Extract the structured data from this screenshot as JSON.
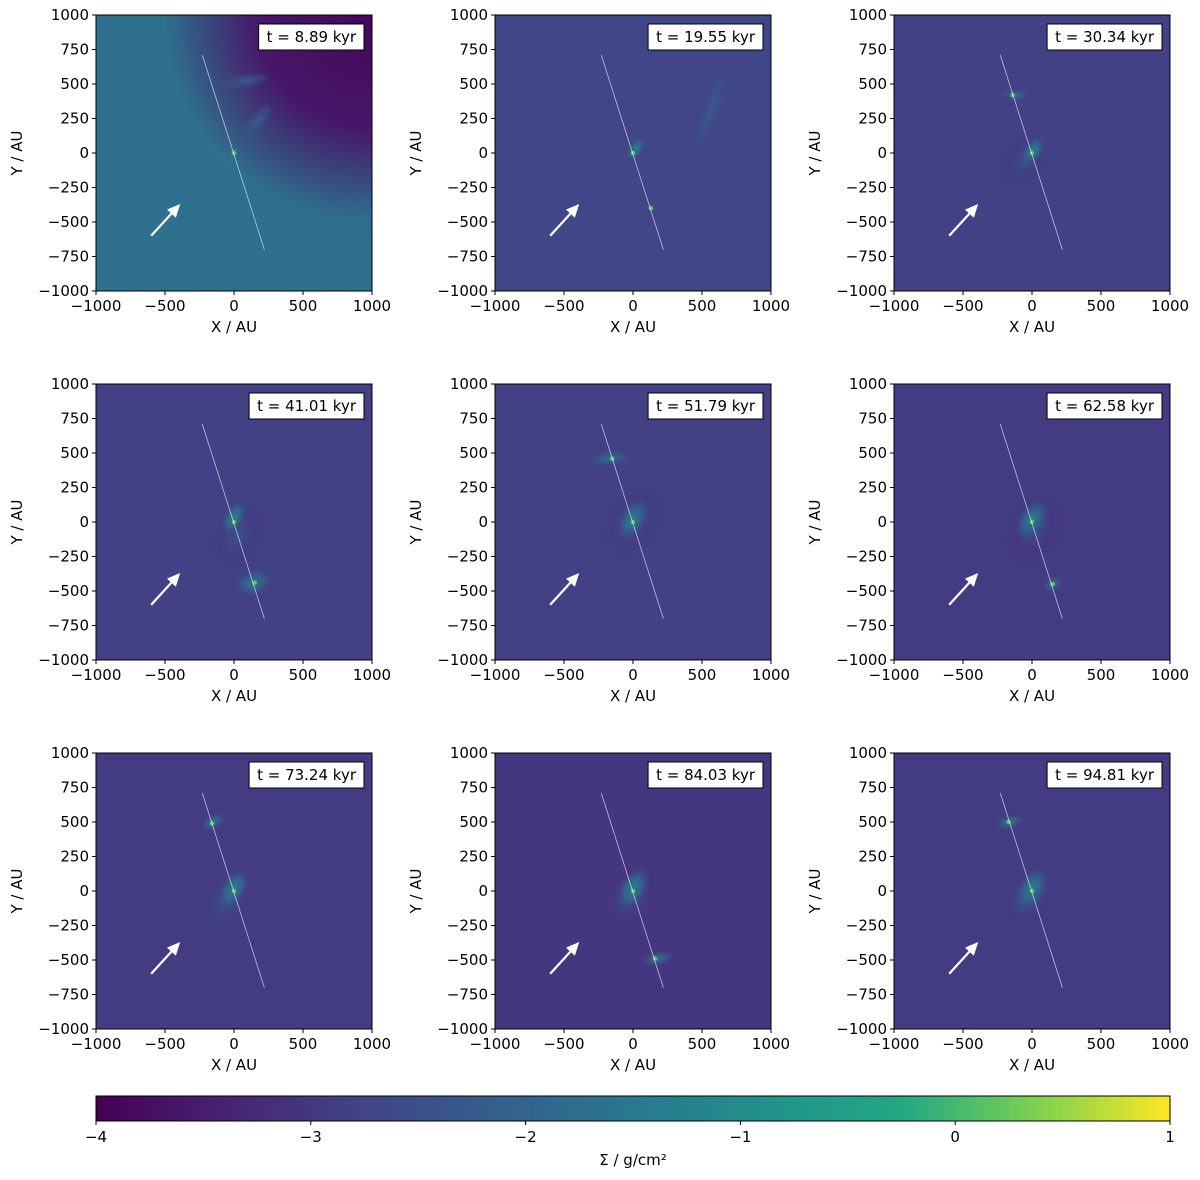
{
  "chart_data": {
    "type": "heatmap",
    "colormap": "viridis",
    "panels": [
      {
        "time_label": "t = 8.89 kyr",
        "xlabel": "X / AU",
        "ylabel": "Y / AU",
        "xlim": [
          -1000,
          1000
        ],
        "ylim": [
          -1000,
          1000
        ],
        "x_ticks": [
          -1000,
          -500,
          0,
          500,
          1000
        ],
        "y_ticks": [
          1000,
          750,
          500,
          250,
          0,
          -250,
          -500,
          -750,
          -1000
        ],
        "background_level": -1.7,
        "corner_void": "top-right",
        "sinks": [
          {
            "x": 0,
            "y": 0
          }
        ],
        "features": [
          {
            "x": 0,
            "y": 0,
            "rx": 60,
            "ry": 30,
            "angle": -55,
            "level": -1.0
          },
          {
            "x": 170,
            "y": 230,
            "rx": 150,
            "ry": 60,
            "angle": -50,
            "level": -2.0
          },
          {
            "x": 80,
            "y": 520,
            "rx": 180,
            "ry": 50,
            "angle": -10,
            "level": -2.1
          }
        ]
      },
      {
        "time_label": "t = 19.55 kyr",
        "xlabel": "X / AU",
        "ylabel": "Y / AU",
        "xlim": [
          -1000,
          1000
        ],
        "ylim": [
          -1000,
          1000
        ],
        "x_ticks": [
          -1000,
          -500,
          0,
          500,
          1000
        ],
        "y_ticks": [
          1000,
          750,
          500,
          250,
          0,
          -250,
          -500,
          -750,
          -1000
        ],
        "background_level": -2.7,
        "sinks": [
          {
            "x": 0,
            "y": 0
          },
          {
            "x": 130,
            "y": -400
          }
        ],
        "features": [
          {
            "x": 20,
            "y": 30,
            "rx": 110,
            "ry": 60,
            "angle": -55,
            "level": -1.3
          },
          {
            "x": 560,
            "y": 300,
            "rx": 140,
            "ry": 700,
            "angle": 20,
            "level": -2.2
          },
          {
            "x": 130,
            "y": -400,
            "rx": 60,
            "ry": 30,
            "angle": 0,
            "level": -1.8
          }
        ]
      },
      {
        "time_label": "t = 30.34 kyr",
        "xlabel": "X / AU",
        "ylabel": "Y / AU",
        "xlim": [
          -1000,
          1000
        ],
        "ylim": [
          -1000,
          1000
        ],
        "x_ticks": [
          -1000,
          -500,
          0,
          500,
          1000
        ],
        "y_ticks": [
          1000,
          750,
          500,
          250,
          0,
          -250,
          -500,
          -750,
          -1000
        ],
        "background_level": -2.8,
        "sinks": [
          {
            "x": 0,
            "y": 0
          },
          {
            "x": -140,
            "y": 420
          }
        ],
        "features": [
          {
            "x": 10,
            "y": 20,
            "rx": 130,
            "ry": 80,
            "angle": -55,
            "level": -1.3
          },
          {
            "x": -120,
            "y": 420,
            "rx": 110,
            "ry": 45,
            "angle": 0,
            "level": -1.6
          },
          {
            "x": -50,
            "y": -50,
            "rx": 280,
            "ry": 200,
            "angle": -55,
            "level": -2.4
          }
        ]
      },
      {
        "time_label": "t = 41.01 kyr",
        "xlabel": "X / AU",
        "ylabel": "Y / AU",
        "xlim": [
          -1000,
          1000
        ],
        "ylim": [
          -1000,
          1000
        ],
        "x_ticks": [
          -1000,
          -500,
          0,
          500,
          1000
        ],
        "y_ticks": [
          1000,
          750,
          500,
          250,
          0,
          -250,
          -500,
          -750,
          -1000
        ],
        "background_level": -2.8,
        "sinks": [
          {
            "x": 0,
            "y": 0
          },
          {
            "x": 150,
            "y": -440
          }
        ],
        "features": [
          {
            "x": 0,
            "y": 30,
            "rx": 150,
            "ry": 80,
            "angle": -60,
            "level": -1.2
          },
          {
            "x": 140,
            "y": -440,
            "rx": 150,
            "ry": 100,
            "angle": -20,
            "level": -1.4
          },
          {
            "x": 30,
            "y": -100,
            "rx": 320,
            "ry": 220,
            "angle": -60,
            "level": -2.4
          }
        ]
      },
      {
        "time_label": "t = 51.79 kyr",
        "xlabel": "X / AU",
        "ylabel": "Y / AU",
        "xlim": [
          -1000,
          1000
        ],
        "ylim": [
          -1000,
          1000
        ],
        "x_ticks": [
          -1000,
          -500,
          0,
          500,
          1000
        ],
        "y_ticks": [
          1000,
          750,
          500,
          250,
          0,
          -250,
          -500,
          -750,
          -1000
        ],
        "background_level": -2.8,
        "sinks": [
          {
            "x": 0,
            "y": 0
          },
          {
            "x": -150,
            "y": 460
          }
        ],
        "features": [
          {
            "x": 0,
            "y": 20,
            "rx": 180,
            "ry": 100,
            "angle": -60,
            "level": -1.3
          },
          {
            "x": -170,
            "y": 460,
            "rx": 180,
            "ry": 65,
            "angle": -5,
            "level": -1.7
          },
          {
            "x": 0,
            "y": 0,
            "rx": 360,
            "ry": 240,
            "angle": -60,
            "level": -2.4
          }
        ]
      },
      {
        "time_label": "t = 62.58 kyr",
        "xlabel": "X / AU",
        "ylabel": "Y / AU",
        "xlim": [
          -1000,
          1000
        ],
        "ylim": [
          -1000,
          1000
        ],
        "x_ticks": [
          -1000,
          -500,
          0,
          500,
          1000
        ],
        "y_ticks": [
          1000,
          750,
          500,
          250,
          0,
          -250,
          -500,
          -750,
          -1000
        ],
        "background_level": -2.9,
        "sinks": [
          {
            "x": 0,
            "y": 0
          },
          {
            "x": 150,
            "y": -450
          }
        ],
        "features": [
          {
            "x": 0,
            "y": 20,
            "rx": 180,
            "ry": 110,
            "angle": -55,
            "level": -1.3
          },
          {
            "x": 150,
            "y": -450,
            "rx": 90,
            "ry": 60,
            "angle": -30,
            "level": -1.7
          },
          {
            "x": 20,
            "y": -60,
            "rx": 340,
            "ry": 240,
            "angle": -60,
            "level": -2.5
          }
        ]
      },
      {
        "time_label": "t = 73.24 kyr",
        "xlabel": "X / AU",
        "ylabel": "Y / AU",
        "xlim": [
          -1000,
          1000
        ],
        "ylim": [
          -1000,
          1000
        ],
        "x_ticks": [
          -1000,
          -500,
          0,
          500,
          1000
        ],
        "y_ticks": [
          1000,
          750,
          500,
          250,
          0,
          -250,
          -500,
          -750,
          -1000
        ],
        "background_level": -2.9,
        "sinks": [
          {
            "x": 0,
            "y": 0
          },
          {
            "x": -160,
            "y": 490
          }
        ],
        "features": [
          {
            "x": 0,
            "y": 20,
            "rx": 170,
            "ry": 100,
            "angle": -60,
            "level": -1.2
          },
          {
            "x": -150,
            "y": 500,
            "rx": 110,
            "ry": 60,
            "angle": -30,
            "level": -1.5
          },
          {
            "x": -60,
            "y": -80,
            "rx": 340,
            "ry": 260,
            "angle": -55,
            "level": -2.4
          }
        ]
      },
      {
        "time_label": "t = 84.03 kyr",
        "xlabel": "X / AU",
        "ylabel": "Y / AU",
        "xlim": [
          -1000,
          1000
        ],
        "ylim": [
          -1000,
          1000
        ],
        "x_ticks": [
          -1000,
          -500,
          0,
          500,
          1000
        ],
        "y_ticks": [
          1000,
          750,
          500,
          250,
          0,
          -250,
          -500,
          -750,
          -1000
        ],
        "background_level": -3.0,
        "sinks": [
          {
            "x": 0,
            "y": 0
          },
          {
            "x": 160,
            "y": -490
          }
        ],
        "features": [
          {
            "x": 0,
            "y": 20,
            "rx": 190,
            "ry": 110,
            "angle": -60,
            "level": -1.3
          },
          {
            "x": 180,
            "y": -490,
            "rx": 130,
            "ry": 60,
            "angle": -10,
            "level": -1.6
          },
          {
            "x": -20,
            "y": -40,
            "rx": 380,
            "ry": 260,
            "angle": -60,
            "level": -2.5
          }
        ]
      },
      {
        "time_label": "t = 94.81 kyr",
        "xlabel": "X / AU",
        "ylabel": "Y / AU",
        "xlim": [
          -1000,
          1000
        ],
        "ylim": [
          -1000,
          1000
        ],
        "x_ticks": [
          -1000,
          -500,
          0,
          500,
          1000
        ],
        "y_ticks": [
          1000,
          750,
          500,
          250,
          0,
          -250,
          -500,
          -750,
          -1000
        ],
        "background_level": -2.9,
        "sinks": [
          {
            "x": 0,
            "y": 0
          },
          {
            "x": -170,
            "y": 500
          }
        ],
        "features": [
          {
            "x": 0,
            "y": 20,
            "rx": 190,
            "ry": 110,
            "angle": -60,
            "level": -1.3
          },
          {
            "x": -160,
            "y": 500,
            "rx": 120,
            "ry": 55,
            "angle": -15,
            "level": -1.5
          },
          {
            "x": -30,
            "y": -60,
            "rx": 360,
            "ry": 260,
            "angle": -60,
            "level": -2.4
          }
        ]
      }
    ],
    "rotation_axis_line": {
      "x1": -230,
      "y1": 710,
      "x2": 220,
      "y2": -700
    },
    "arrow": {
      "x1": -600,
      "y1": -600,
      "x2": -390,
      "y2": -370
    },
    "colorbar": {
      "label": "Σ / g/cm²",
      "range": [
        -4,
        1
      ],
      "tick_values": [
        -4,
        -3,
        -2,
        -1,
        0,
        1
      ],
      "tick_labels": [
        "−4",
        "−3",
        "−2",
        "−1",
        "0",
        "1"
      ]
    }
  }
}
